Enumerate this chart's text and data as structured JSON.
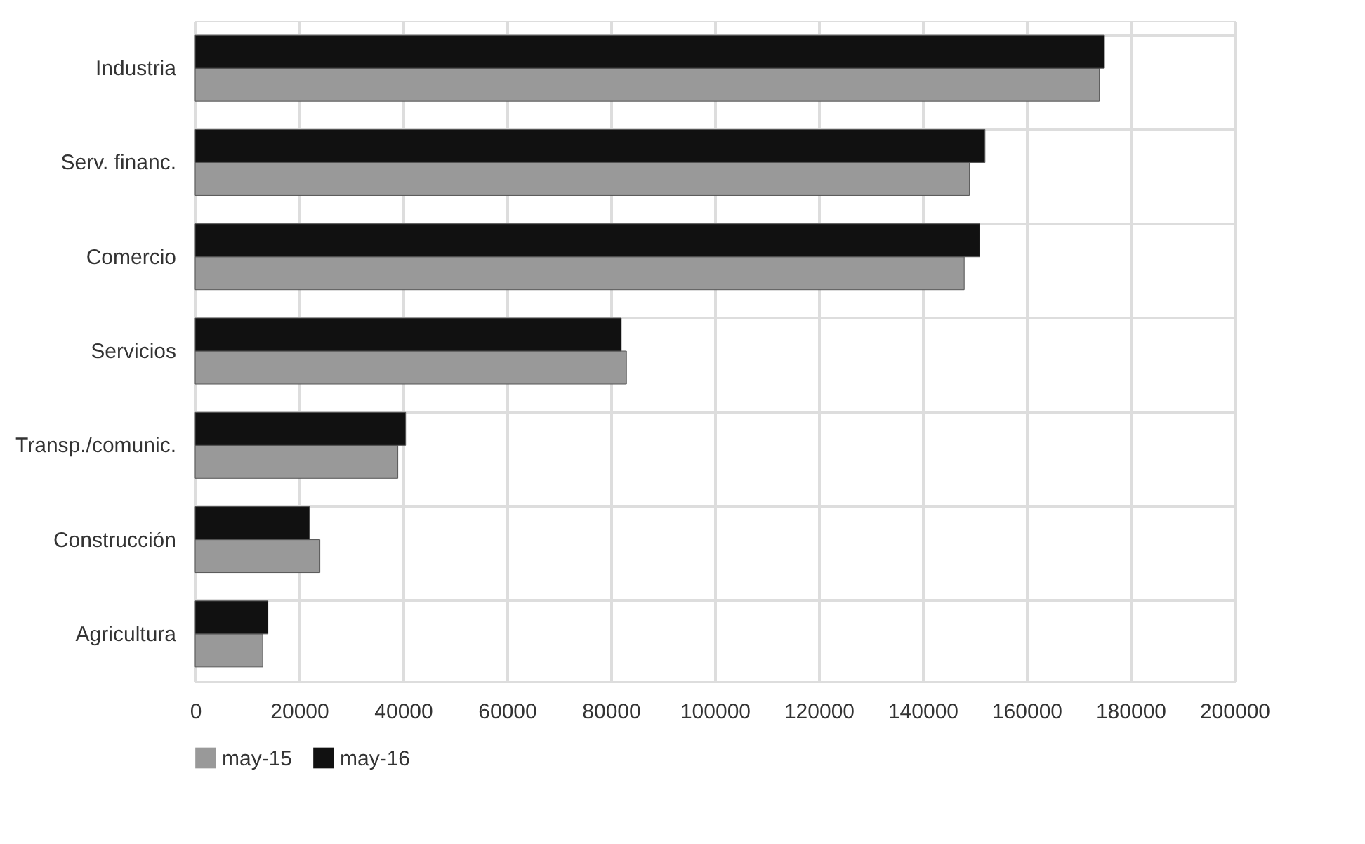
{
  "chart_data": {
    "type": "bar",
    "orientation": "horizontal",
    "categories": [
      "Industria",
      "Serv. financ.",
      "Comercio",
      "Servicios",
      "Transp./comunic.",
      "Construcción",
      "Agricultura"
    ],
    "series": [
      {
        "name": "may-15",
        "color": "#999999",
        "values": [
          174000,
          149000,
          148000,
          83000,
          39000,
          24000,
          13000
        ]
      },
      {
        "name": "may-16",
        "color": "#111111",
        "values": [
          175000,
          152000,
          151000,
          82000,
          40500,
          22000,
          14000
        ]
      }
    ],
    "xlim": [
      0,
      200000
    ],
    "xticks": [
      0,
      20000,
      40000,
      60000,
      80000,
      100000,
      120000,
      140000,
      160000,
      180000,
      200000
    ],
    "grid": true,
    "legend": "bottom"
  }
}
